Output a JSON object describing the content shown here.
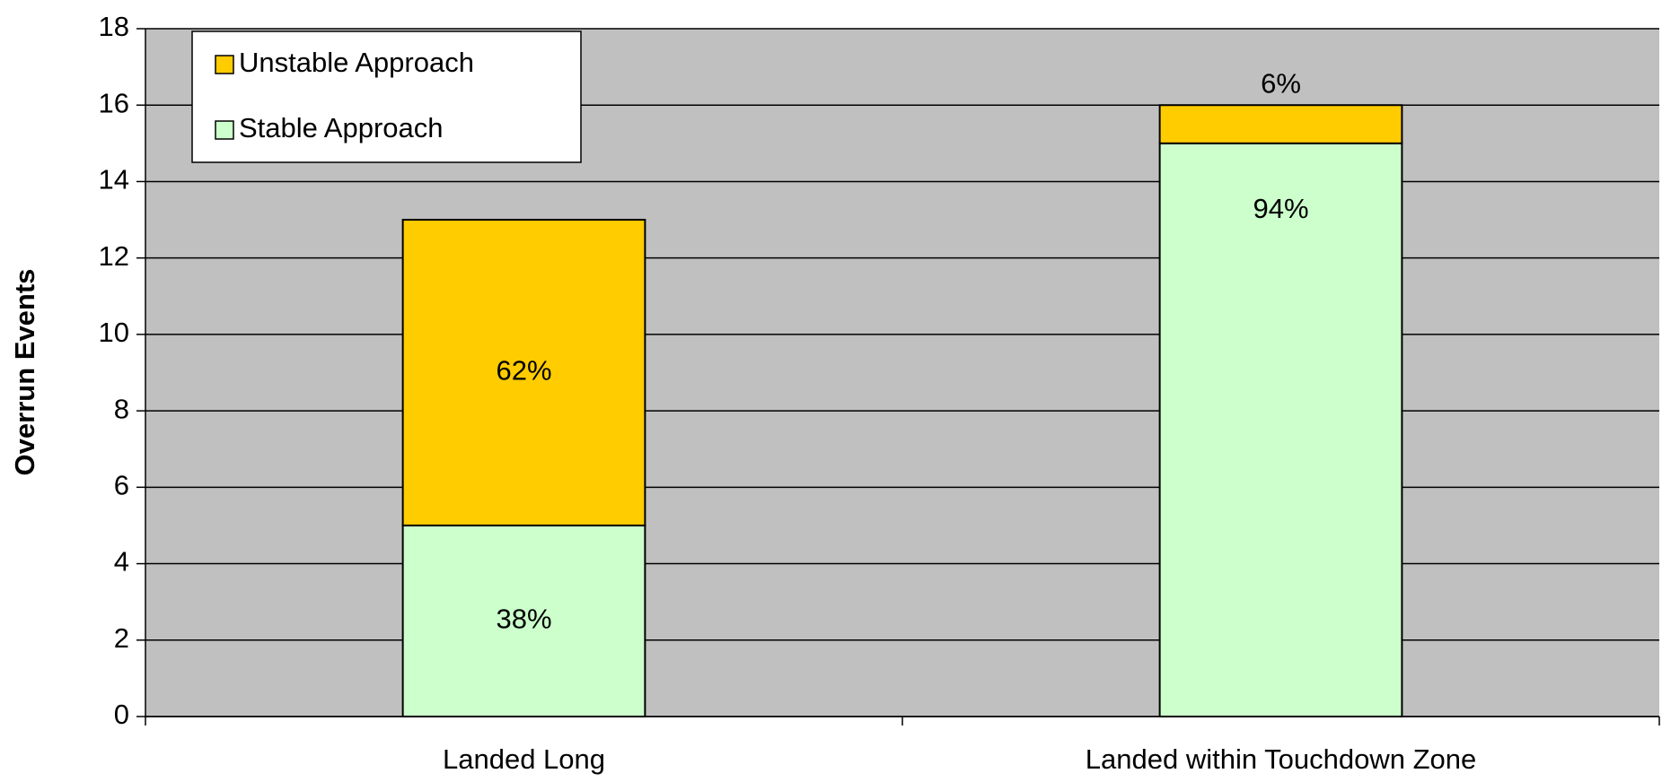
{
  "chart_data": {
    "type": "stacked-bar",
    "y_label": "Overrun Events",
    "categories": [
      "Landed Long",
      "Landed within Touchdown Zone"
    ],
    "series": [
      {
        "name": "Stable Approach",
        "color": "#ccffcc",
        "values": [
          5,
          15
        ],
        "share_labels": [
          "38%",
          "94%"
        ]
      },
      {
        "name": "Unstable Approach",
        "color": "#ffcc00",
        "values": [
          8,
          1
        ],
        "share_labels": [
          "62%",
          "6%"
        ]
      }
    ],
    "ylim": [
      0,
      18
    ],
    "yticks": [
      0,
      2,
      4,
      6,
      8,
      10,
      12,
      14,
      16,
      18
    ],
    "grid": true,
    "legend": "top-left",
    "plot_color": "#c0c0c0"
  }
}
